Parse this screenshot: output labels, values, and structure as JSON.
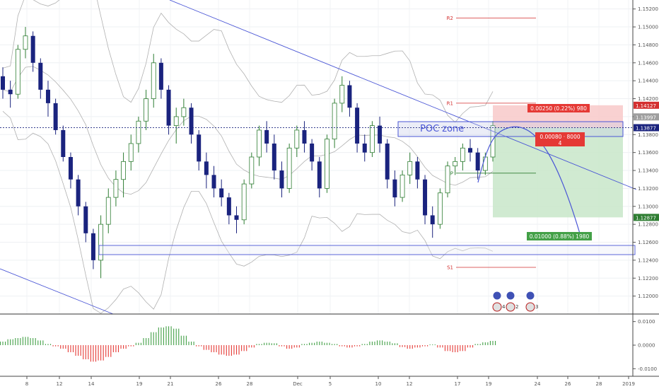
{
  "colors": {
    "bull": "#2e7d32",
    "bear": "#1a237e",
    "trendline": "#4a56d6",
    "band": "#b0b0b0",
    "pivot_red": "#d32f2f",
    "pivot_green": "#2e7d32",
    "target_zone": "#c8e6c9",
    "stop_zone": "#f8c9c9",
    "macd_green": "#43a047",
    "macd_red": "#e53935"
  },
  "chart_data": [
    {
      "type": "candlestick",
      "symbol_price_axis": {
        "ylim": [
          1.118,
          1.153
        ],
        "ticks": [
          "1.15200",
          "1.15000",
          "1.14800",
          "1.14600",
          "1.14400",
          "1.14200",
          "1.14000",
          "1.13800",
          "1.13600",
          "1.13400",
          "1.13200",
          "1.13000",
          "1.12800",
          "1.12600",
          "1.12400",
          "1.12200",
          "1.12000"
        ]
      },
      "x_axis": {
        "ticks": [
          "8",
          "12",
          "14",
          "19",
          "21",
          "26",
          "28",
          "Dec",
          "5",
          "10",
          "12",
          "17",
          "19",
          "24",
          "26",
          "28",
          "2019"
        ]
      },
      "price_badges": {
        "stop_price": "1.14127",
        "current_high": "1.13997",
        "current_price": "1.13877",
        "target_price": "1.12877"
      },
      "levels": {
        "r2": {
          "label": "R2",
          "value": 1.151
        },
        "r1": {
          "label": "R1",
          "value": 1.1415
        },
        "p": {
          "label": "P",
          "value": 1.1337
        },
        "s1": {
          "label": "S1",
          "value": 1.1232
        }
      },
      "annotations": {
        "poc_zone": "POC zone",
        "stop_box": "0.00250 (0.22%) 980",
        "entry_box_line1": "0.00080 · 8000",
        "entry_box_line2": "4",
        "target_box": "0.01000 (0.88%) 1980",
        "event_icons": [
          "4",
          "2",
          "3"
        ]
      },
      "candles_ohlc": [
        [
          1.1445,
          1.1455,
          1.142,
          1.143
        ],
        [
          1.143,
          1.144,
          1.141,
          1.1425
        ],
        [
          1.1425,
          1.148,
          1.142,
          1.1475
        ],
        [
          1.1475,
          1.15,
          1.1465,
          1.149
        ],
        [
          1.149,
          1.1495,
          1.145,
          1.146
        ],
        [
          1.146,
          1.1465,
          1.142,
          1.143
        ],
        [
          1.143,
          1.144,
          1.14,
          1.1415
        ],
        [
          1.1415,
          1.142,
          1.138,
          1.1385
        ],
        [
          1.1385,
          1.139,
          1.135,
          1.1355
        ],
        [
          1.1355,
          1.136,
          1.132,
          1.133
        ],
        [
          1.133,
          1.1335,
          1.129,
          1.13
        ],
        [
          1.13,
          1.1305,
          1.126,
          1.127
        ],
        [
          1.127,
          1.1275,
          1.123,
          1.124
        ],
        [
          1.124,
          1.129,
          1.122,
          1.128
        ],
        [
          1.128,
          1.132,
          1.127,
          1.131
        ],
        [
          1.131,
          1.134,
          1.13,
          1.133
        ],
        [
          1.133,
          1.136,
          1.131,
          1.135
        ],
        [
          1.135,
          1.138,
          1.134,
          1.137
        ],
        [
          1.137,
          1.14,
          1.136,
          1.1395
        ],
        [
          1.1395,
          1.143,
          1.1385,
          1.142
        ],
        [
          1.142,
          1.147,
          1.141,
          1.146
        ],
        [
          1.146,
          1.1465,
          1.142,
          1.143
        ],
        [
          1.143,
          1.1435,
          1.138,
          1.139
        ],
        [
          1.139,
          1.141,
          1.137,
          1.14
        ],
        [
          1.14,
          1.142,
          1.139,
          1.141
        ],
        [
          1.141,
          1.1415,
          1.137,
          1.138
        ],
        [
          1.138,
          1.1385,
          1.134,
          1.135
        ],
        [
          1.135,
          1.136,
          1.132,
          1.1335
        ],
        [
          1.1335,
          1.1345,
          1.131,
          1.132
        ],
        [
          1.132,
          1.133,
          1.13,
          1.131
        ],
        [
          1.131,
          1.1315,
          1.128,
          1.129
        ],
        [
          1.129,
          1.13,
          1.127,
          1.1285
        ],
        [
          1.1285,
          1.133,
          1.128,
          1.1325
        ],
        [
          1.1325,
          1.136,
          1.132,
          1.1355
        ],
        [
          1.1355,
          1.139,
          1.1345,
          1.1385
        ],
        [
          1.1385,
          1.1395,
          1.136,
          1.137
        ],
        [
          1.137,
          1.138,
          1.133,
          1.134
        ],
        [
          1.134,
          1.135,
          1.131,
          1.132
        ],
        [
          1.132,
          1.137,
          1.1315,
          1.1365
        ],
        [
          1.1365,
          1.139,
          1.1355,
          1.1385
        ],
        [
          1.1385,
          1.1395,
          1.136,
          1.137
        ],
        [
          1.137,
          1.1375,
          1.134,
          1.135
        ],
        [
          1.135,
          1.1355,
          1.131,
          1.132
        ],
        [
          1.132,
          1.138,
          1.1315,
          1.1375
        ],
        [
          1.1375,
          1.142,
          1.1365,
          1.1415
        ],
        [
          1.1415,
          1.1445,
          1.1405,
          1.1435
        ],
        [
          1.1435,
          1.144,
          1.14,
          1.141
        ],
        [
          1.141,
          1.1415,
          1.136,
          1.137
        ],
        [
          1.137,
          1.138,
          1.135,
          1.136
        ],
        [
          1.136,
          1.1395,
          1.1355,
          1.139
        ],
        [
          1.139,
          1.14,
          1.136,
          1.137
        ],
        [
          1.137,
          1.1375,
          1.132,
          1.133
        ],
        [
          1.133,
          1.134,
          1.13,
          1.131
        ],
        [
          1.131,
          1.134,
          1.1305,
          1.1335
        ],
        [
          1.1335,
          1.136,
          1.1325,
          1.135
        ],
        [
          1.135,
          1.1355,
          1.132,
          1.133
        ],
        [
          1.133,
          1.1335,
          1.128,
          1.129
        ],
        [
          1.129,
          1.13,
          1.1265,
          1.128
        ],
        [
          1.128,
          1.132,
          1.1275,
          1.1315
        ],
        [
          1.1315,
          1.135,
          1.131,
          1.1345
        ],
        [
          1.1345,
          1.1355,
          1.1335,
          1.135
        ],
        [
          1.135,
          1.137,
          1.134,
          1.1365
        ],
        [
          1.1365,
          1.1375,
          1.135,
          1.136
        ],
        [
          1.136,
          1.1365,
          1.133,
          1.134
        ],
        [
          1.134,
          1.136,
          1.1335,
          1.1355
        ],
        [
          1.1355,
          1.1395,
          1.135,
          1.139
        ]
      ],
      "macd_histogram": [
        0.0015,
        0.0025,
        0.003,
        0.0035,
        0.003,
        0.002,
        0.0005,
        -0.0005,
        -0.0015,
        -0.003,
        -0.0045,
        -0.006,
        -0.007,
        -0.0065,
        -0.005,
        -0.003,
        -0.0015,
        -0.0005,
        0.001,
        0.003,
        0.0055,
        0.0075,
        0.008,
        0.007,
        0.004,
        0.0015,
        -0.0005,
        -0.002,
        -0.003,
        -0.004,
        -0.0045,
        -0.004,
        -0.0025,
        -0.001,
        0.0005,
        0.001,
        0.0008,
        -0.0005,
        -0.0015,
        -0.001,
        0.0005,
        0.001,
        0.0015,
        0.001,
        0.0005,
        -0.0005,
        -0.001,
        -0.0005,
        0.0005,
        0.0015,
        0.002,
        0.0015,
        0.0008,
        -0.0008,
        -0.0015,
        -0.001,
        -0.0005,
        0.0003,
        -0.001,
        -0.0025,
        -0.003,
        -0.0025,
        -0.001,
        0.0005,
        0.0012,
        0.0018
      ],
      "macd_axis": {
        "ylim": [
          -0.012,
          0.012
        ],
        "ticks": [
          "0.0100",
          "0.0000",
          "-0.0100"
        ]
      },
      "grid": true
    }
  ]
}
